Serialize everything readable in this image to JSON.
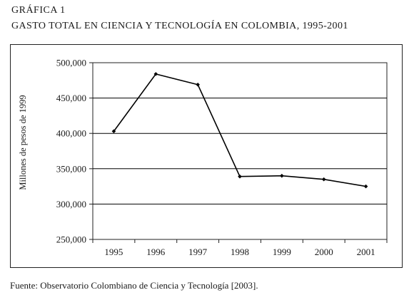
{
  "caption": {
    "label": "GRÁFICA 1",
    "title": "GASTO TOTAL EN CIENCIA Y TECNOLOGÍA EN COLOMBIA, 1995-2001"
  },
  "source": "Fuente: Observatorio Colombiano de Ciencia y Tecnología [2003].",
  "chart_data": {
    "type": "line",
    "title": "GASTO TOTAL EN CIENCIA Y TECNOLOGÍA EN COLOMBIA, 1995-2001",
    "xlabel": "",
    "ylabel": "Millones de pesos de 1999",
    "categories": [
      "1995",
      "1996",
      "1997",
      "1998",
      "1999",
      "2000",
      "2001"
    ],
    "series": [
      {
        "values": [
          403000,
          484000,
          469000,
          339000,
          340000,
          335000,
          325000
        ]
      }
    ],
    "ylim": [
      250000,
      500000
    ],
    "yticks": [
      "250,000",
      "300,000",
      "350,000",
      "400,000",
      "450,000",
      "500,000"
    ],
    "ytick_values": [
      250000,
      300000,
      350000,
      400000,
      450000,
      500000
    ],
    "grid": true,
    "line_color": "#000000",
    "grid_color": "#000000"
  }
}
